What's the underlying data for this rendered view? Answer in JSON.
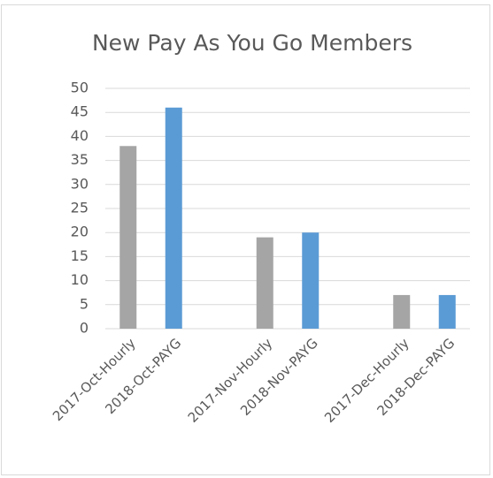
{
  "chart_data": {
    "type": "bar",
    "title": "New Pay As You Go Members",
    "categories": [
      "2017-Oct-Hourly",
      "2018-Oct-PAYG",
      "2017-Nov-Hourly",
      "2018-Nov-PAYG",
      "2017-Dec-Hourly",
      "2018-Dec-PAYG"
    ],
    "values": [
      38,
      46,
      19,
      20,
      7,
      7
    ],
    "colors": [
      "#a5a5a5",
      "#5b9bd5",
      "#a5a5a5",
      "#5b9bd5",
      "#a5a5a5",
      "#5b9bd5"
    ],
    "ylim": [
      0,
      50
    ],
    "yticks": [
      0,
      5,
      10,
      15,
      20,
      25,
      30,
      35,
      40,
      45,
      50
    ],
    "grid": true
  }
}
